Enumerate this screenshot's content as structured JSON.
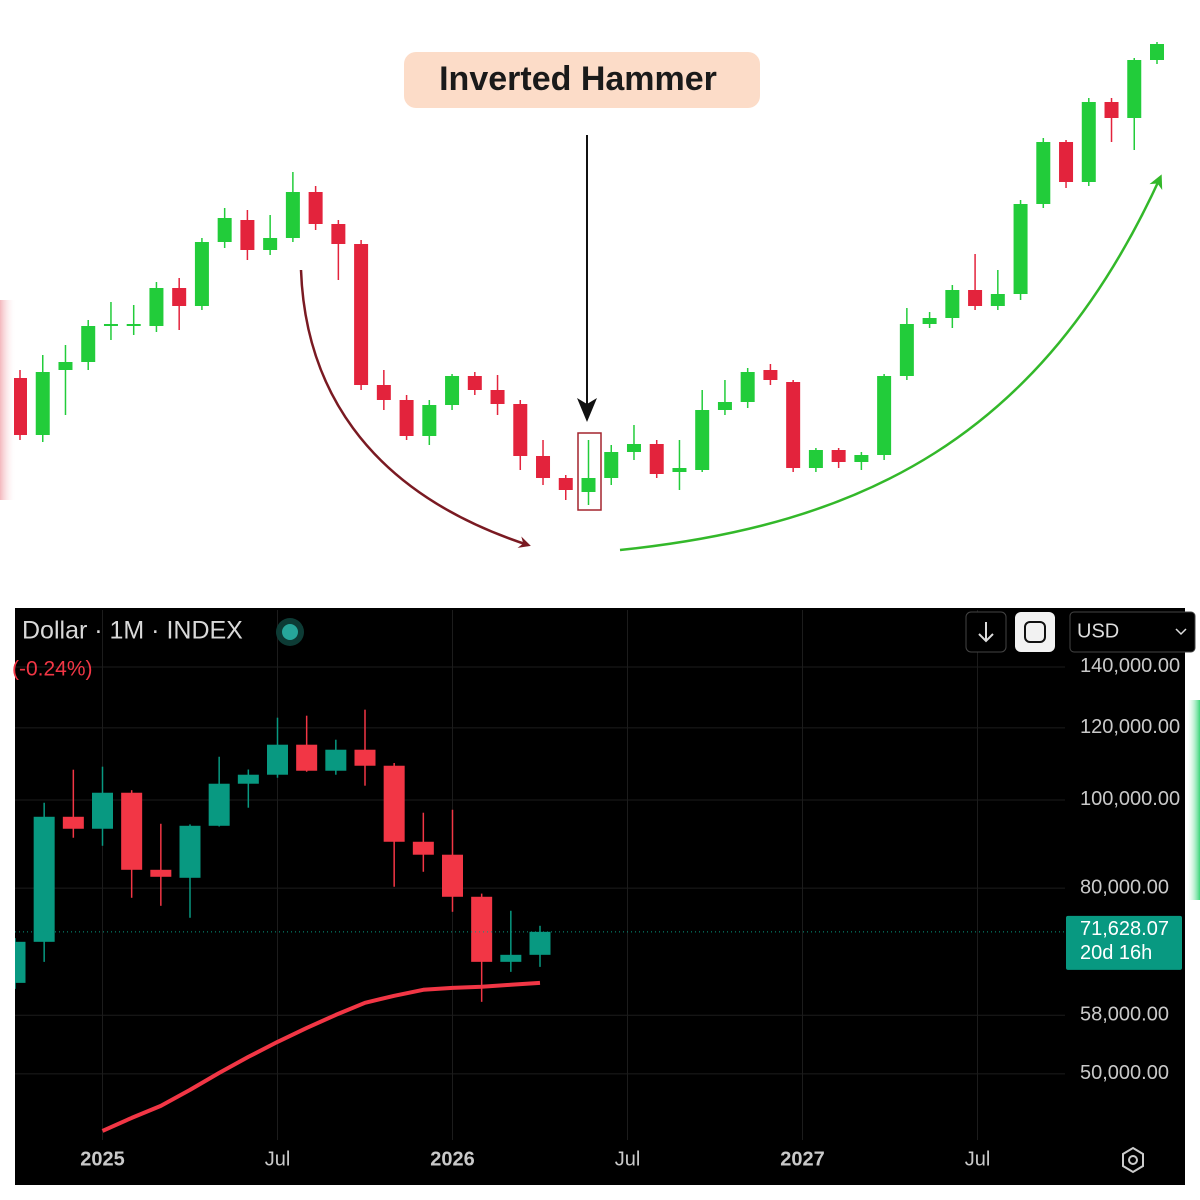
{
  "chart_data": [
    {
      "type": "candlestick",
      "annotation": "Inverted Hammer",
      "categories": [
        null,
        null,
        null,
        null,
        null,
        null,
        null,
        null,
        null,
        null,
        null,
        null,
        null,
        null,
        null,
        null,
        null,
        null,
        null,
        null,
        null,
        null,
        null,
        null,
        null,
        null,
        null,
        null,
        null,
        null,
        null,
        null,
        null,
        null,
        null,
        null,
        null,
        null,
        null,
        null,
        null,
        null,
        null,
        null,
        null,
        null,
        null,
        null,
        null,
        null,
        null
      ],
      "open": [
        182,
        125,
        190,
        198,
        234,
        235,
        234,
        272,
        254,
        318,
        340,
        310,
        322,
        368,
        336,
        316,
        175,
        160,
        124,
        155,
        184,
        170,
        156,
        104,
        82,
        68,
        82,
        108,
        116,
        88,
        90,
        150,
        158,
        190,
        178,
        92,
        110,
        98,
        105,
        184,
        236,
        242,
        270,
        254,
        266,
        356,
        418,
        378,
        458,
        442,
        500
      ],
      "high": [
        190,
        205,
        215,
        240,
        258,
        255,
        278,
        282,
        322,
        352,
        350,
        345,
        388,
        374,
        340,
        320,
        190,
        165,
        160,
        186,
        188,
        185,
        160,
        120,
        85,
        120,
        115,
        135,
        120,
        120,
        170,
        180,
        192,
        196,
        180,
        112,
        112,
        108,
        186,
        252,
        248,
        275,
        306,
        290,
        360,
        422,
        420,
        462,
        462,
        502,
        518
      ],
      "low": [
        120,
        118,
        145,
        190,
        220,
        225,
        228,
        230,
        250,
        312,
        300,
        305,
        318,
        330,
        280,
        170,
        150,
        120,
        115,
        150,
        165,
        145,
        90,
        75,
        60,
        55,
        75,
        100,
        82,
        70,
        88,
        145,
        152,
        175,
        88,
        88,
        92,
        90,
        100,
        180,
        232,
        232,
        250,
        250,
        260,
        352,
        372,
        374,
        418,
        410,
        496
      ],
      "close": [
        125,
        188,
        198,
        234,
        236,
        236,
        272,
        254,
        318,
        342,
        310,
        322,
        368,
        336,
        316,
        175,
        160,
        124,
        155,
        184,
        170,
        156,
        104,
        82,
        70,
        82,
        108,
        116,
        86,
        92,
        150,
        158,
        188,
        180,
        92,
        110,
        98,
        105,
        184,
        236,
        242,
        270,
        254,
        266,
        356,
        418,
        378,
        458,
        442,
        500,
        516
      ],
      "up_color": "#22cc3a",
      "down_color": "#e3233c",
      "ylim": [
        0,
        560
      ]
    },
    {
      "type": "candlestick",
      "title": "Dollar · 1M · INDEX",
      "change": "(-0.24%)",
      "currency": "USD",
      "countdown": "20d 16h",
      "x": [
        "2024-10",
        "2024-11",
        "2024-12",
        "2025-01",
        "2025-02",
        "2025-03",
        "2025-04",
        "2025-05",
        "2025-06",
        "2025-07",
        "2025-08",
        "2025-09",
        "2025-10",
        "2025-11",
        "2025-12",
        "2026-01",
        "2026-02",
        "2026-03",
        "2026-04"
      ],
      "open": [
        62950,
        69840,
        95830,
        92970,
        101840,
        83800,
        82120,
        93670,
        104190,
        106590,
        115000,
        107670,
        113550,
        109040,
        89960,
        87060,
        78270,
        66390,
        67580
      ],
      "high": [
        70500,
        99300,
        107950,
        108780,
        102500,
        94150,
        94000,
        111550,
        108000,
        123140,
        123760,
        116460,
        125660,
        109800,
        96820,
        97550,
        78900,
        75550,
        72730
      ],
      "low": [
        62000,
        66390,
        90880,
        89050,
        78070,
        76500,
        74220,
        93500,
        98050,
        105780,
        107400,
        106590,
        103670,
        80280,
        83380,
        75350,
        60000,
        64730,
        65550
      ],
      "close": [
        69840,
        95830,
        92970,
        101840,
        83800,
        82330,
        93670,
        104190,
        106590,
        115000,
        107670,
        113550,
        109040,
        89960,
        87060,
        78270,
        66390,
        67580,
        71628.07
      ],
      "line_values": [
        null,
        null,
        null,
        43280,
        44730,
        46110,
        48020,
        50130,
        52200,
        54220,
        56170,
        58050,
        59850,
        60920,
        61850,
        62160,
        62320,
        62640,
        62950
      ],
      "line_color": "#f23645",
      "up_color": "#089981",
      "down_color": "#f23645",
      "last_price": {
        "value": 71628.07,
        "label": "71,628.07"
      },
      "log_scale": true,
      "grid": true,
      "ylim": [
        42300,
        161700
      ],
      "yticks": [
        {
          "value": 50000,
          "label": "50,000.00"
        },
        {
          "value": 58000,
          "label": "58,000.00"
        },
        {
          "value": 80000,
          "label": "80,000.00"
        },
        {
          "value": 100000,
          "label": "100,000.00"
        },
        {
          "value": 120000,
          "label": "120,000.00"
        },
        {
          "value": 140000,
          "label": "140,000.00"
        }
      ],
      "xlim": [
        "2024-10",
        "2027-10"
      ],
      "xticks": [
        {
          "value": "2025-01",
          "label": "2025"
        },
        {
          "value": "2025-07",
          "label": "Jul"
        },
        {
          "value": "2026-01",
          "label": "2026"
        },
        {
          "value": "2026-07",
          "label": "Jul"
        },
        {
          "value": "2027-01",
          "label": "2027"
        },
        {
          "value": "2027-07",
          "label": "Jul"
        }
      ]
    }
  ]
}
